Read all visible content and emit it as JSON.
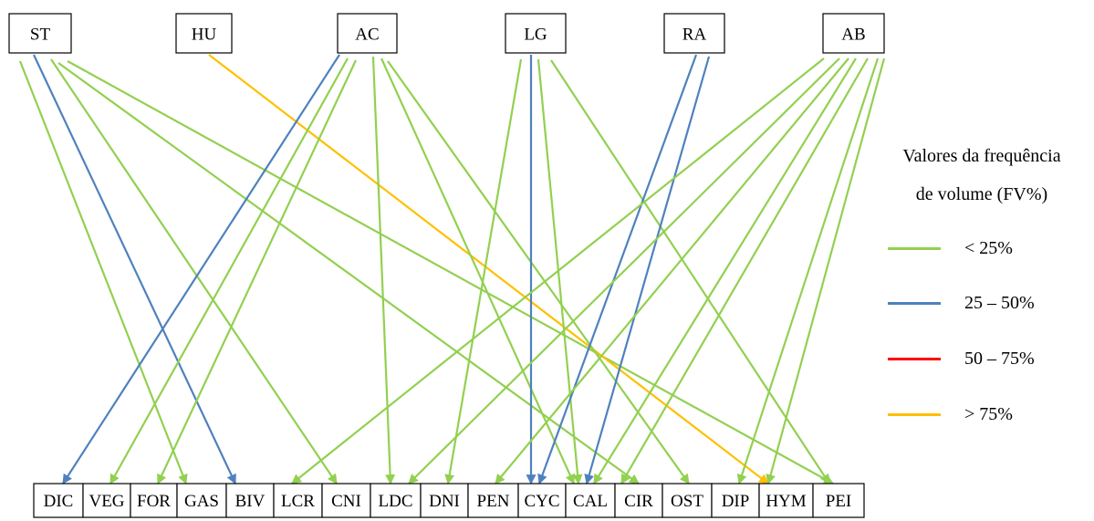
{
  "sources": [
    "ST",
    "HU",
    "AC",
    "LG",
    "RA",
    "AB"
  ],
  "targets": [
    "DIC",
    "VEG",
    "FOR",
    "GAS",
    "BIV",
    "LCR",
    "CNI",
    "LDC",
    "DNI",
    "PEN",
    "CYC",
    "CAL",
    "CIR",
    "OST",
    "DIP",
    "HYM",
    "PEI"
  ],
  "colors": {
    "lt25": "#92d050",
    "25to50": "#4f81bd",
    "50to75": "#ff0000",
    "gt75": "#ffc000"
  },
  "legend": {
    "title_line1": "Valores da frequência",
    "title_line2": "de volume (FV%)",
    "items": [
      {
        "key": "lt25",
        "label": "< 25%"
      },
      {
        "key": "25to50",
        "label": "25 – 50%"
      },
      {
        "key": "50to75",
        "label": "50 – 75%"
      },
      {
        "key": "gt75",
        "label": "> 75%"
      }
    ]
  },
  "links": [
    {
      "from": "ST",
      "to": "GAS",
      "class": "lt25"
    },
    {
      "from": "ST",
      "to": "BIV",
      "class": "25to50"
    },
    {
      "from": "ST",
      "to": "CNI",
      "class": "lt25"
    },
    {
      "from": "ST",
      "to": "CIR",
      "class": "lt25"
    },
    {
      "from": "ST",
      "to": "PEI",
      "class": "lt25"
    },
    {
      "from": "HU",
      "to": "HYM",
      "class": "gt75"
    },
    {
      "from": "AC",
      "to": "DIC",
      "class": "25to50"
    },
    {
      "from": "AC",
      "to": "VEG",
      "class": "lt25"
    },
    {
      "from": "AC",
      "to": "FOR",
      "class": "lt25"
    },
    {
      "from": "AC",
      "to": "LDC",
      "class": "lt25"
    },
    {
      "from": "AC",
      "to": "CAL",
      "class": "lt25"
    },
    {
      "from": "AC",
      "to": "OST",
      "class": "lt25"
    },
    {
      "from": "LG",
      "to": "DNI",
      "class": "lt25"
    },
    {
      "from": "LG",
      "to": "CYC",
      "class": "25to50"
    },
    {
      "from": "LG",
      "to": "CAL",
      "class": "lt25"
    },
    {
      "from": "LG",
      "to": "PEI",
      "class": "lt25"
    },
    {
      "from": "RA",
      "to": "CYC",
      "class": "25to50"
    },
    {
      "from": "RA",
      "to": "CAL",
      "class": "25to50"
    },
    {
      "from": "AB",
      "to": "LCR",
      "class": "lt25"
    },
    {
      "from": "AB",
      "to": "LDC",
      "class": "lt25"
    },
    {
      "from": "AB",
      "to": "PEN",
      "class": "lt25"
    },
    {
      "from": "AB",
      "to": "CAL",
      "class": "lt25"
    },
    {
      "from": "AB",
      "to": "CIR",
      "class": "lt25"
    },
    {
      "from": "AB",
      "to": "DIP",
      "class": "lt25"
    },
    {
      "from": "AB",
      "to": "HYM",
      "class": "lt25"
    }
  ]
}
